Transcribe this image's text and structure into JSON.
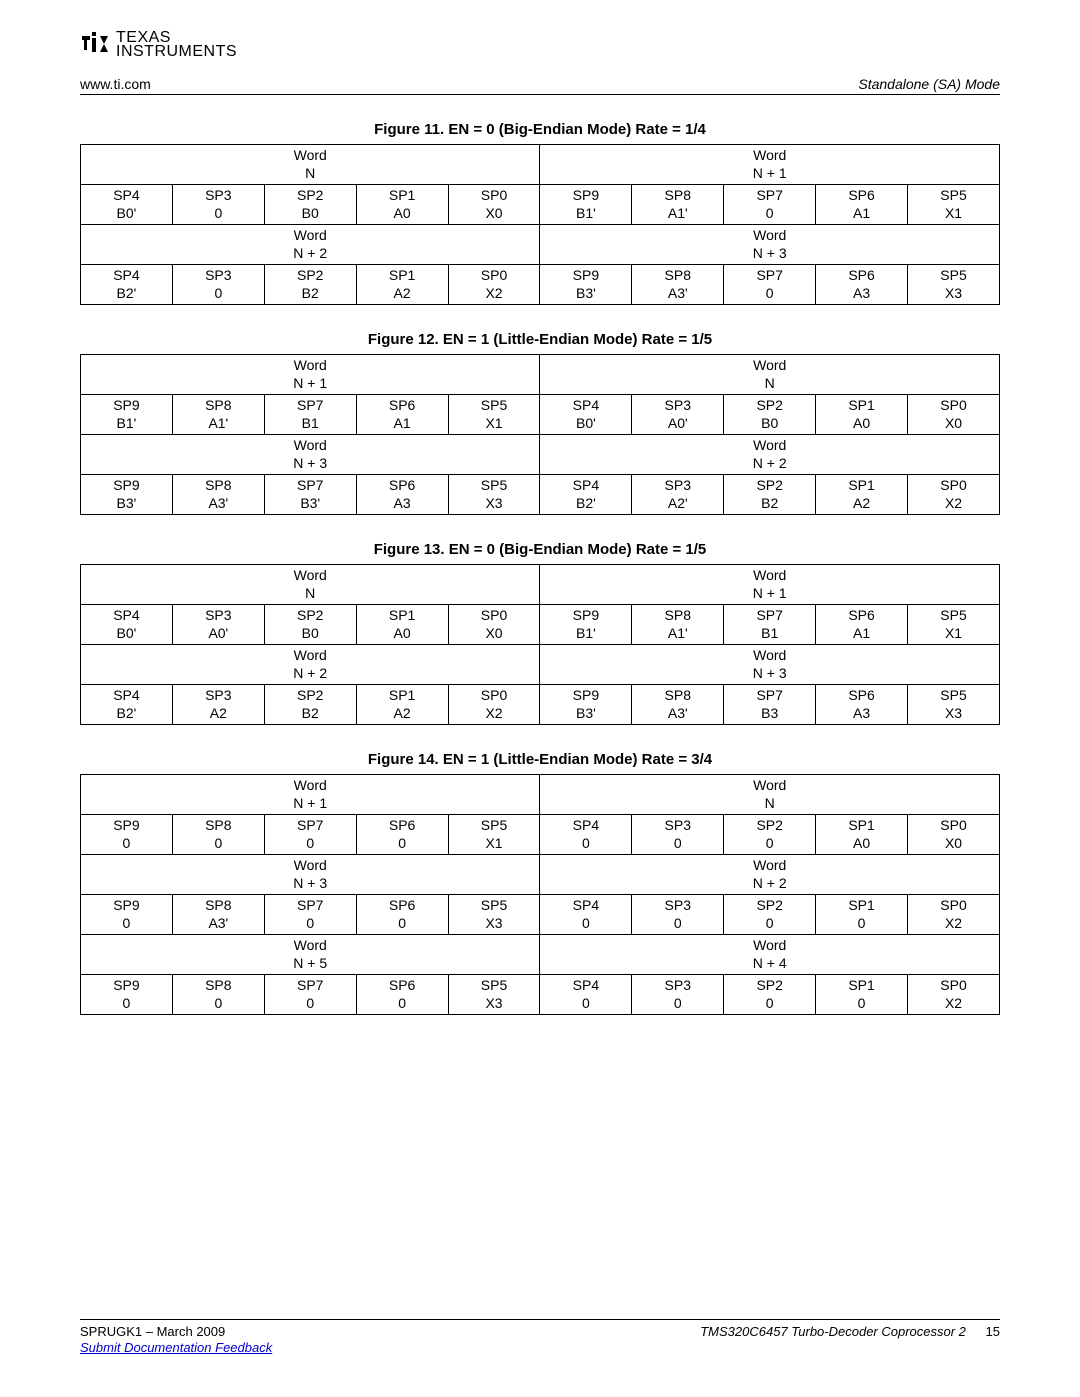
{
  "header": {
    "url": "www.ti.com",
    "mode": "Standalone (SA) Mode"
  },
  "logo": {
    "top": "TEXAS",
    "bottom": "INSTRUMENTS"
  },
  "fig11": {
    "title": "Figure 11. EN = 0 (Big-Endian Mode) Rate = 1/4",
    "h1a": "Word",
    "h1b": "N",
    "h2a": "Word",
    "h2b": "N + 1",
    "r1": [
      {
        "t": "SP4",
        "b": "B0'"
      },
      {
        "t": "SP3",
        "b": "0"
      },
      {
        "t": "SP2",
        "b": "B0"
      },
      {
        "t": "SP1",
        "b": "A0"
      },
      {
        "t": "SP0",
        "b": "X0"
      },
      {
        "t": "SP9",
        "b": "B1'"
      },
      {
        "t": "SP8",
        "b": "A1'"
      },
      {
        "t": "SP7",
        "b": "0"
      },
      {
        "t": "SP6",
        "b": "A1"
      },
      {
        "t": "SP5",
        "b": "X1"
      }
    ],
    "h3a": "Word",
    "h3b": "N + 2",
    "h4a": "Word",
    "h4b": "N + 3",
    "r2": [
      {
        "t": "SP4",
        "b": "B2'"
      },
      {
        "t": "SP3",
        "b": "0"
      },
      {
        "t": "SP2",
        "b": "B2"
      },
      {
        "t": "SP1",
        "b": "A2"
      },
      {
        "t": "SP0",
        "b": "X2"
      },
      {
        "t": "SP9",
        "b": "B3'"
      },
      {
        "t": "SP8",
        "b": "A3'"
      },
      {
        "t": "SP7",
        "b": "0"
      },
      {
        "t": "SP6",
        "b": "A3"
      },
      {
        "t": "SP5",
        "b": "X3"
      }
    ]
  },
  "fig12": {
    "title": "Figure 12. EN = 1 (Little-Endian Mode) Rate = 1/5",
    "h1a": "Word",
    "h1b": "N + 1",
    "h2a": "Word",
    "h2b": "N",
    "r1": [
      {
        "t": "SP9",
        "b": "B1'"
      },
      {
        "t": "SP8",
        "b": "A1'"
      },
      {
        "t": "SP7",
        "b": "B1"
      },
      {
        "t": "SP6",
        "b": "A1"
      },
      {
        "t": "SP5",
        "b": "X1"
      },
      {
        "t": "SP4",
        "b": "B0'"
      },
      {
        "t": "SP3",
        "b": "A0'"
      },
      {
        "t": "SP2",
        "b": "B0"
      },
      {
        "t": "SP1",
        "b": "A0"
      },
      {
        "t": "SP0",
        "b": "X0"
      }
    ],
    "h3a": "Word",
    "h3b": "N + 3",
    "h4a": "Word",
    "h4b": "N + 2",
    "r2": [
      {
        "t": "SP9",
        "b": "B3'"
      },
      {
        "t": "SP8",
        "b": "A3'"
      },
      {
        "t": "SP7",
        "b": "B3'"
      },
      {
        "t": "SP6",
        "b": "A3"
      },
      {
        "t": "SP5",
        "b": "X3"
      },
      {
        "t": "SP4",
        "b": "B2'"
      },
      {
        "t": "SP3",
        "b": "A2'"
      },
      {
        "t": "SP2",
        "b": "B2"
      },
      {
        "t": "SP1",
        "b": "A2"
      },
      {
        "t": "SP0",
        "b": "X2"
      }
    ]
  },
  "fig13": {
    "title": "Figure 13. EN = 0 (Big-Endian Mode) Rate = 1/5",
    "h1a": "Word",
    "h1b": "N",
    "h2a": "Word",
    "h2b": "N + 1",
    "r1": [
      {
        "t": "SP4",
        "b": "B0'"
      },
      {
        "t": "SP3",
        "b": "A0'"
      },
      {
        "t": "SP2",
        "b": "B0"
      },
      {
        "t": "SP1",
        "b": "A0"
      },
      {
        "t": "SP0",
        "b": "X0"
      },
      {
        "t": "SP9",
        "b": "B1'"
      },
      {
        "t": "SP8",
        "b": "A1'"
      },
      {
        "t": "SP7",
        "b": "B1"
      },
      {
        "t": "SP6",
        "b": "A1"
      },
      {
        "t": "SP5",
        "b": "X1"
      }
    ],
    "h3a": "Word",
    "h3b": "N + 2",
    "h4a": "Word",
    "h4b": "N + 3",
    "r2": [
      {
        "t": "SP4",
        "b": "B2'"
      },
      {
        "t": "SP3",
        "b": "A2"
      },
      {
        "t": "SP2",
        "b": "B2"
      },
      {
        "t": "SP1",
        "b": "A2"
      },
      {
        "t": "SP0",
        "b": "X2"
      },
      {
        "t": "SP9",
        "b": "B3'"
      },
      {
        "t": "SP8",
        "b": "A3'"
      },
      {
        "t": "SP7",
        "b": "B3"
      },
      {
        "t": "SP6",
        "b": "A3"
      },
      {
        "t": "SP5",
        "b": "X3"
      }
    ]
  },
  "fig14": {
    "title": "Figure 14. EN = 1 (Little-Endian Mode) Rate = 3/4",
    "h1a": "Word",
    "h1b": "N + 1",
    "h2a": "Word",
    "h2b": "N",
    "r1": [
      {
        "t": "SP9",
        "b": "0"
      },
      {
        "t": "SP8",
        "b": "0"
      },
      {
        "t": "SP7",
        "b": "0"
      },
      {
        "t": "SP6",
        "b": "0"
      },
      {
        "t": "SP5",
        "b": "X1"
      },
      {
        "t": "SP4",
        "b": "0"
      },
      {
        "t": "SP3",
        "b": "0"
      },
      {
        "t": "SP2",
        "b": "0"
      },
      {
        "t": "SP1",
        "b": "A0"
      },
      {
        "t": "SP0",
        "b": "X0"
      }
    ],
    "h3a": "Word",
    "h3b": "N + 3",
    "h4a": "Word",
    "h4b": "N + 2",
    "r2": [
      {
        "t": "SP9",
        "b": "0"
      },
      {
        "t": "SP8",
        "b": "A3'"
      },
      {
        "t": "SP7",
        "b": "0"
      },
      {
        "t": "SP6",
        "b": "0"
      },
      {
        "t": "SP5",
        "b": "X3"
      },
      {
        "t": "SP4",
        "b": "0"
      },
      {
        "t": "SP3",
        "b": "0"
      },
      {
        "t": "SP2",
        "b": "0"
      },
      {
        "t": "SP1",
        "b": "0"
      },
      {
        "t": "SP0",
        "b": "X2"
      }
    ],
    "h5a": "Word",
    "h5b": "N + 5",
    "h6a": "Word",
    "h6b": "N + 4",
    "r3": [
      {
        "t": "SP9",
        "b": "0"
      },
      {
        "t": "SP8",
        "b": "0"
      },
      {
        "t": "SP7",
        "b": "0"
      },
      {
        "t": "SP6",
        "b": "0"
      },
      {
        "t": "SP5",
        "b": "X3"
      },
      {
        "t": "SP4",
        "b": "0"
      },
      {
        "t": "SP3",
        "b": "0"
      },
      {
        "t": "SP2",
        "b": "0"
      },
      {
        "t": "SP1",
        "b": "0"
      },
      {
        "t": "SP0",
        "b": "X2"
      }
    ]
  },
  "footer": {
    "left": "SPRUGK1 – March 2009",
    "right": "TMS320C6457 Turbo-Decoder Coprocessor 2",
    "page": "15",
    "feedback": "Submit Documentation Feedback"
  }
}
